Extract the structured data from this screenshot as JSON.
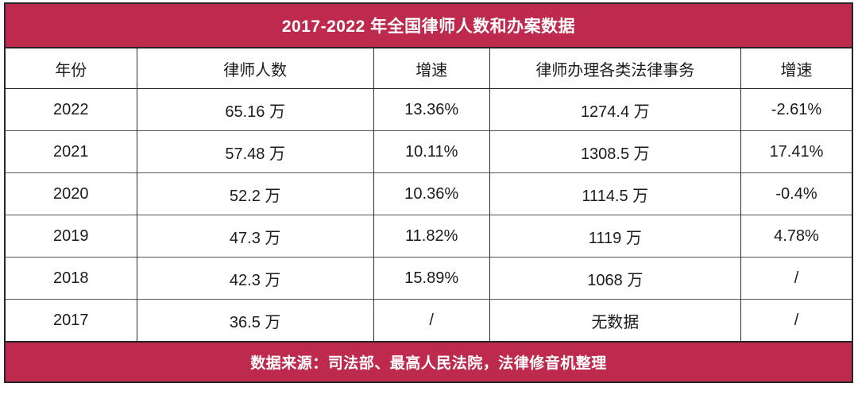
{
  "colors": {
    "accent": "#BD2A4D",
    "border_dark": "#2E2E2E",
    "row_divider": "#555555",
    "text": "#1B1B1B",
    "band_text": "#FFFFFF"
  },
  "chart_data": {
    "type": "table",
    "title": "2017-2022 年全国律师人数和办案数据",
    "columns": [
      "年份",
      "律师人数",
      "增速",
      "律师办理各类法律事务",
      "增速"
    ],
    "rows": [
      [
        "2022",
        "65.16 万",
        "13.36%",
        "1274.4 万",
        "-2.61%"
      ],
      [
        "2021",
        "57.48 万",
        "10.11%",
        "1308.5 万",
        "17.41%"
      ],
      [
        "2020",
        "52.2 万",
        "10.36%",
        "1114.5 万",
        "-0.4%"
      ],
      [
        "2019",
        "47.3 万",
        "11.82%",
        "1119 万",
        "4.78%"
      ],
      [
        "2018",
        "42.3 万",
        "15.89%",
        "1068 万",
        "/"
      ],
      [
        "2017",
        "36.5 万",
        "/",
        "无数据",
        "/"
      ]
    ],
    "source": "数据来源：司法部、最高人民法院，法律修音机整理"
  }
}
